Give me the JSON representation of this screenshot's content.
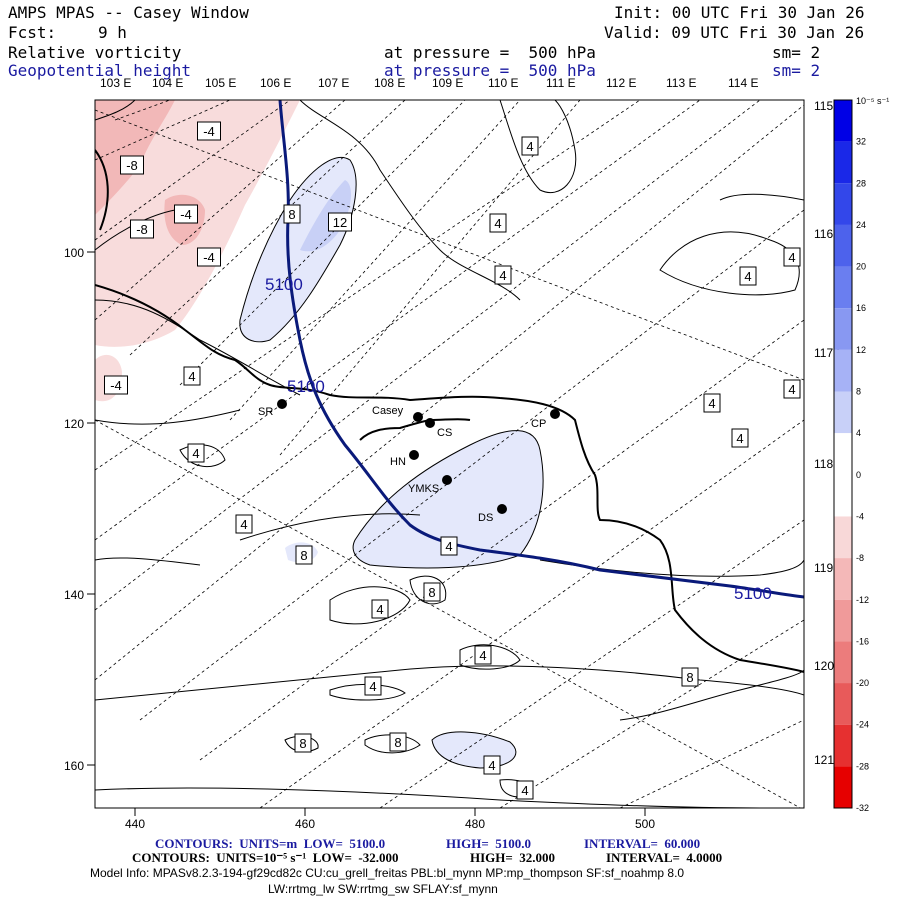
{
  "header": {
    "title": "AMPS MPAS -- Casey Window",
    "init": "Init: 00 UTC Fri 30 Jan 26",
    "fcst_label": "Fcst:",
    "fcst_value": "9 h",
    "valid": "Valid: 09 UTC Fri 30 Jan 26",
    "field1": "Relative vorticity",
    "field1_level": "at pressure =  500 hPa",
    "field1_sm": "sm= 2",
    "field2": "Geopotential height",
    "field2_level": "at pressure =  500 hPa",
    "field2_sm": "sm= 2"
  },
  "top_longitudes": [
    "103 E",
    "104 E",
    "105 E",
    "106 E",
    "107 E",
    "108 E",
    "109 E",
    "110 E",
    "111 E",
    "112 E",
    "113 E",
    "114 E"
  ],
  "right_longitudes": [
    "115 E",
    "116 E",
    "117 E",
    "118 E",
    "119 E",
    "120 E",
    "121 E"
  ],
  "x_ticks": [
    "440",
    "460",
    "480",
    "500"
  ],
  "y_ticks": [
    "100",
    "120",
    "140",
    "160"
  ],
  "colorbar": {
    "unit": "10⁻⁵ s⁻¹",
    "labels": [
      "32",
      "28",
      "24",
      "20",
      "16",
      "12",
      "8",
      "4",
      "0",
      "-4",
      "-8",
      "-12",
      "-16",
      "-20",
      "-24",
      "-28",
      "-32"
    ],
    "colors": [
      "#0000e6",
      "#1a28e8",
      "#3347ea",
      "#4d62ec",
      "#6a7ef0",
      "#8898f2",
      "#a6b2f6",
      "#c8d0f8",
      "#ffffff",
      "#ffffff",
      "#f8d8d8",
      "#f4b8b8",
      "#f09a9a",
      "#ec7c7c",
      "#e85a5a",
      "#e63030",
      "#e60000"
    ]
  },
  "stations": [
    {
      "id": "SR",
      "label": "SR"
    },
    {
      "id": "Casey",
      "label": "Casey"
    },
    {
      "id": "CS",
      "label": "CS"
    },
    {
      "id": "CP",
      "label": "CP"
    },
    {
      "id": "HN",
      "label": "HN"
    },
    {
      "id": "YMKS",
      "label": "YMKS"
    },
    {
      "id": "DS",
      "label": "DS"
    }
  ],
  "height_labels": [
    "5100",
    "5100",
    "5100"
  ],
  "vort_labels": [
    "-4",
    "-8",
    "-4",
    "-8",
    "-4",
    "-4",
    "8",
    "12",
    "4",
    "4",
    "4",
    "4",
    "4",
    "4",
    "4",
    "4",
    "4",
    "4",
    "4",
    "8",
    "8",
    "4",
    "4",
    "4",
    "4",
    "8",
    "8",
    "8",
    "4",
    "4",
    "4"
  ],
  "footer": {
    "line1_prefix": "CONTOURS:  UNITS=m  LOW=  5100.0",
    "line1_high": "HIGH=  5100.0",
    "line1_interval": "INTERVAL=  60.000",
    "line2_prefix": "CONTOURS:  UNITS=10⁻⁵ s⁻¹  LOW=  -32.000",
    "line2_high": "HIGH=  32.000",
    "line2_interval": "INTERVAL=  4.0000",
    "model_info": "Model Info: MPASv8.2.3-194-gf29cd82c CU:cu_grell_freitas PBL:bl_mynn MP:mp_thompson SF:sf_noahmp 8.0",
    "model_info2": "LW:rrtmg_lw SW:rrtmg_sw SFLAY:sf_mynn"
  }
}
